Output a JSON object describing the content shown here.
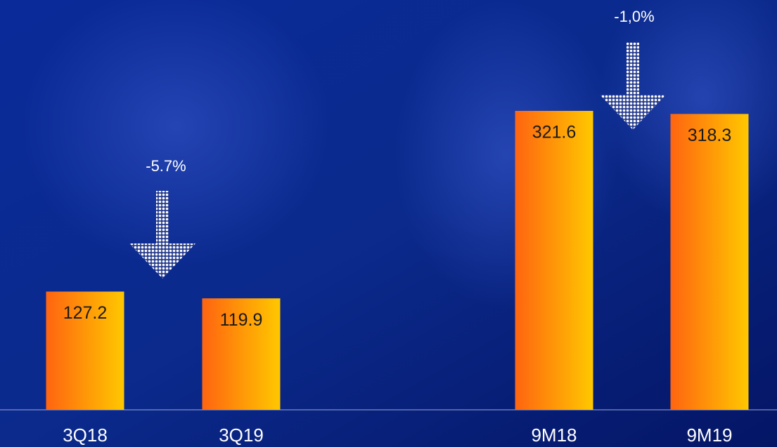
{
  "chart_data": {
    "type": "bar",
    "categories": [
      "3Q18",
      "3Q19",
      "9M18",
      "9M19"
    ],
    "values": [
      127.2,
      119.9,
      321.6,
      318.3
    ],
    "annotations": [
      "-5.7%",
      "-1,0%"
    ]
  }
}
